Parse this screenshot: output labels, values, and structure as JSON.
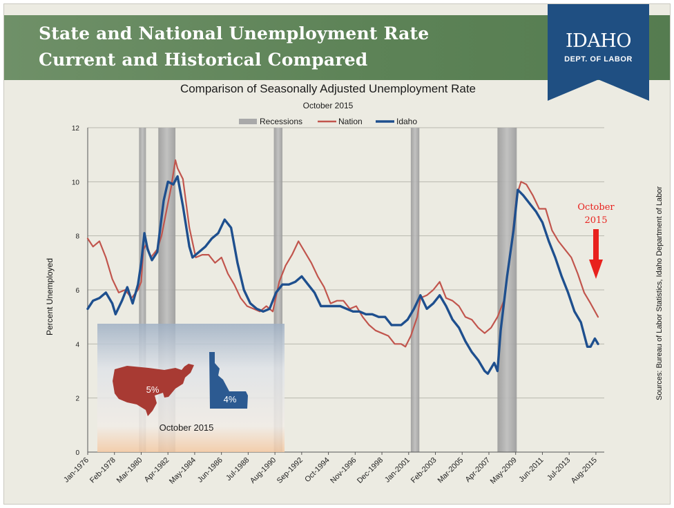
{
  "banner": {
    "title_line1": "State and National Unemployment Rate",
    "title_line2": "Current and Historical Compared"
  },
  "logo": {
    "main": "IDAHO",
    "sub": "DEPT. OF LABOR"
  },
  "sources": "Sources: Bureau of Labor Statistics, Idaho Department of Labor",
  "callout": {
    "line1": "October",
    "line2": "2015",
    "color": "#e8211d"
  },
  "inset": {
    "us_label": "5%",
    "idaho_label": "4%",
    "caption": "October 2015",
    "us_color": "#a83a33",
    "idaho_color": "#2c5a91"
  },
  "chart_data": {
    "type": "line",
    "title": "Comparison of Seasonally Adjusted Unemployment Rate",
    "subtitle": "October 2015",
    "ylabel": "Percent Unemployed",
    "ylim": [
      0,
      12
    ],
    "yticks": [
      "0",
      "2",
      "4",
      "6",
      "8",
      "10",
      "12"
    ],
    "xlim": [
      "1976-01",
      "2015-10"
    ],
    "xticks": [
      "Jan-1976",
      "Feb-1978",
      "Mar-1980",
      "Apr-1982",
      "May-1984",
      "Jun-1986",
      "Jul-1988",
      "Aug-1990",
      "Sep-1992",
      "Oct-1994",
      "Nov-1996",
      "Dec-1998",
      "Jan-2001",
      "Feb-2003",
      "Mar-2005",
      "Apr-2007",
      "May-2009",
      "Jun-2011",
      "Jul-2013",
      "Aug-2015"
    ],
    "legend": {
      "placement": "top-center",
      "recessions": "Recessions"
    },
    "recessions": [
      [
        "1980-01",
        "1980-07"
      ],
      [
        "1981-07",
        "1982-11"
      ],
      [
        "1990-07",
        "1991-03"
      ],
      [
        "2001-03",
        "2001-11"
      ],
      [
        "2007-12",
        "2009-06"
      ]
    ],
    "series": [
      {
        "name": "Nation",
        "color": "#c1554d",
        "points": [
          [
            "1976-01",
            7.9
          ],
          [
            "1976-06",
            7.6
          ],
          [
            "1976-12",
            7.8
          ],
          [
            "1977-06",
            7.2
          ],
          [
            "1977-12",
            6.4
          ],
          [
            "1978-06",
            5.9
          ],
          [
            "1978-12",
            6.0
          ],
          [
            "1979-06",
            5.7
          ],
          [
            "1979-12",
            6.0
          ],
          [
            "1980-03",
            6.3
          ],
          [
            "1980-05",
            7.5
          ],
          [
            "1980-08",
            7.7
          ],
          [
            "1980-12",
            7.2
          ],
          [
            "1981-06",
            7.5
          ],
          [
            "1981-10",
            8.0
          ],
          [
            "1982-03",
            9.0
          ],
          [
            "1982-07",
            9.8
          ],
          [
            "1982-11",
            10.8
          ],
          [
            "1983-01",
            10.5
          ],
          [
            "1983-06",
            10.1
          ],
          [
            "1983-12",
            8.3
          ],
          [
            "1984-06",
            7.2
          ],
          [
            "1984-12",
            7.3
          ],
          [
            "1985-06",
            7.3
          ],
          [
            "1985-12",
            7.0
          ],
          [
            "1986-06",
            7.2
          ],
          [
            "1986-12",
            6.6
          ],
          [
            "1987-06",
            6.2
          ],
          [
            "1987-12",
            5.7
          ],
          [
            "1988-06",
            5.4
          ],
          [
            "1988-12",
            5.3
          ],
          [
            "1989-06",
            5.2
          ],
          [
            "1989-12",
            5.4
          ],
          [
            "1990-06",
            5.2
          ],
          [
            "1990-12",
            6.3
          ],
          [
            "1991-06",
            6.9
          ],
          [
            "1991-12",
            7.3
          ],
          [
            "1992-06",
            7.8
          ],
          [
            "1992-12",
            7.4
          ],
          [
            "1993-06",
            7.0
          ],
          [
            "1993-12",
            6.5
          ],
          [
            "1994-06",
            6.1
          ],
          [
            "1994-12",
            5.5
          ],
          [
            "1995-06",
            5.6
          ],
          [
            "1995-12",
            5.6
          ],
          [
            "1996-06",
            5.3
          ],
          [
            "1996-12",
            5.4
          ],
          [
            "1997-06",
            5.0
          ],
          [
            "1997-12",
            4.7
          ],
          [
            "1998-06",
            4.5
          ],
          [
            "1998-12",
            4.4
          ],
          [
            "1999-06",
            4.3
          ],
          [
            "1999-12",
            4.0
          ],
          [
            "2000-06",
            4.0
          ],
          [
            "2000-10",
            3.9
          ],
          [
            "2001-03",
            4.3
          ],
          [
            "2001-09",
            5.0
          ],
          [
            "2001-12",
            5.7
          ],
          [
            "2002-06",
            5.8
          ],
          [
            "2002-12",
            6.0
          ],
          [
            "2003-06",
            6.3
          ],
          [
            "2003-12",
            5.7
          ],
          [
            "2004-06",
            5.6
          ],
          [
            "2004-12",
            5.4
          ],
          [
            "2005-06",
            5.0
          ],
          [
            "2005-12",
            4.9
          ],
          [
            "2006-06",
            4.6
          ],
          [
            "2006-12",
            4.4
          ],
          [
            "2007-06",
            4.6
          ],
          [
            "2007-12",
            5.0
          ],
          [
            "2008-06",
            5.6
          ],
          [
            "2008-12",
            7.3
          ],
          [
            "2009-06",
            9.5
          ],
          [
            "2009-10",
            10.0
          ],
          [
            "2010-03",
            9.9
          ],
          [
            "2010-09",
            9.5
          ],
          [
            "2011-03",
            9.0
          ],
          [
            "2011-09",
            9.0
          ],
          [
            "2012-03",
            8.2
          ],
          [
            "2012-09",
            7.8
          ],
          [
            "2013-03",
            7.5
          ],
          [
            "2013-09",
            7.2
          ],
          [
            "2014-03",
            6.6
          ],
          [
            "2014-09",
            5.9
          ],
          [
            "2015-03",
            5.5
          ],
          [
            "2015-10",
            5.0
          ]
        ]
      },
      {
        "name": "Idaho",
        "color": "#1e4f8e",
        "points": [
          [
            "1976-01",
            5.3
          ],
          [
            "1976-06",
            5.6
          ],
          [
            "1976-12",
            5.7
          ],
          [
            "1977-06",
            5.9
          ],
          [
            "1977-12",
            5.5
          ],
          [
            "1978-03",
            5.1
          ],
          [
            "1978-09",
            5.6
          ],
          [
            "1979-02",
            6.1
          ],
          [
            "1979-07",
            5.5
          ],
          [
            "1979-12",
            6.2
          ],
          [
            "1980-03",
            7.0
          ],
          [
            "1980-06",
            8.1
          ],
          [
            "1980-09",
            7.5
          ],
          [
            "1981-01",
            7.1
          ],
          [
            "1981-06",
            7.4
          ],
          [
            "1981-12",
            9.3
          ],
          [
            "1982-04",
            10.0
          ],
          [
            "1982-09",
            9.9
          ],
          [
            "1983-01",
            10.2
          ],
          [
            "1983-06",
            9.1
          ],
          [
            "1983-12",
            7.6
          ],
          [
            "1984-03",
            7.2
          ],
          [
            "1984-09",
            7.4
          ],
          [
            "1985-03",
            7.6
          ],
          [
            "1985-09",
            7.9
          ],
          [
            "1986-03",
            8.1
          ],
          [
            "1986-09",
            8.6
          ],
          [
            "1987-03",
            8.3
          ],
          [
            "1987-09",
            7.0
          ],
          [
            "1988-03",
            6.0
          ],
          [
            "1988-09",
            5.5
          ],
          [
            "1989-03",
            5.3
          ],
          [
            "1989-09",
            5.2
          ],
          [
            "1990-03",
            5.3
          ],
          [
            "1990-09",
            5.9
          ],
          [
            "1991-03",
            6.2
          ],
          [
            "1991-09",
            6.2
          ],
          [
            "1992-03",
            6.3
          ],
          [
            "1992-09",
            6.5
          ],
          [
            "1993-03",
            6.2
          ],
          [
            "1993-09",
            5.9
          ],
          [
            "1994-03",
            5.4
          ],
          [
            "1994-09",
            5.4
          ],
          [
            "1995-03",
            5.4
          ],
          [
            "1995-09",
            5.4
          ],
          [
            "1996-03",
            5.3
          ],
          [
            "1996-09",
            5.2
          ],
          [
            "1997-03",
            5.2
          ],
          [
            "1997-09",
            5.1
          ],
          [
            "1998-03",
            5.1
          ],
          [
            "1998-09",
            5.0
          ],
          [
            "1999-03",
            5.0
          ],
          [
            "1999-09",
            4.7
          ],
          [
            "2000-06",
            4.7
          ],
          [
            "2000-12",
            4.9
          ],
          [
            "2001-06",
            5.3
          ],
          [
            "2001-12",
            5.8
          ],
          [
            "2002-06",
            5.3
          ],
          [
            "2002-12",
            5.5
          ],
          [
            "2003-06",
            5.8
          ],
          [
            "2003-12",
            5.4
          ],
          [
            "2004-06",
            4.9
          ],
          [
            "2004-12",
            4.6
          ],
          [
            "2005-06",
            4.1
          ],
          [
            "2005-12",
            3.7
          ],
          [
            "2006-06",
            3.4
          ],
          [
            "2006-12",
            3.0
          ],
          [
            "2007-03",
            2.9
          ],
          [
            "2007-09",
            3.3
          ],
          [
            "2007-12",
            3.0
          ],
          [
            "2008-03",
            4.5
          ],
          [
            "2008-09",
            6.5
          ],
          [
            "2009-03",
            8.2
          ],
          [
            "2009-07",
            9.7
          ],
          [
            "2009-12",
            9.5
          ],
          [
            "2010-06",
            9.2
          ],
          [
            "2010-12",
            8.9
          ],
          [
            "2011-06",
            8.5
          ],
          [
            "2011-12",
            7.8
          ],
          [
            "2012-06",
            7.2
          ],
          [
            "2012-12",
            6.5
          ],
          [
            "2013-06",
            5.9
          ],
          [
            "2013-12",
            5.2
          ],
          [
            "2014-06",
            4.8
          ],
          [
            "2014-12",
            3.9
          ],
          [
            "2015-03",
            3.9
          ],
          [
            "2015-07",
            4.2
          ],
          [
            "2015-10",
            4.0
          ]
        ]
      }
    ]
  }
}
